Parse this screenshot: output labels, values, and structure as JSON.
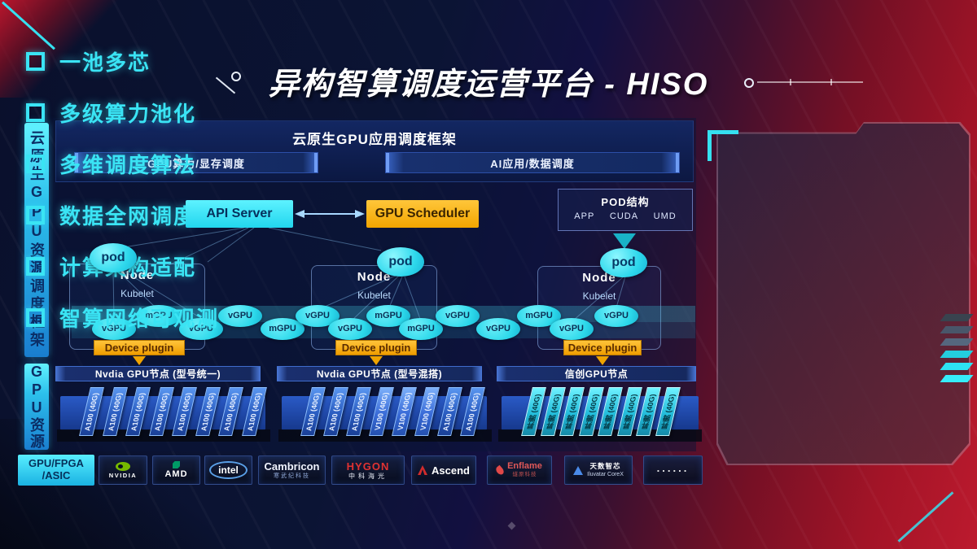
{
  "title": "异构智算调度运营平台 - HISO",
  "sidebar": {
    "frame_label": "云原生GPU资源调度框架",
    "resource_label": "GPU资源"
  },
  "app_framework": {
    "title": "云原生GPU应用调度框架",
    "left_bar": "GPU算力/显存调度",
    "right_bar": "AI应用/数据调度"
  },
  "control": {
    "api_server": "API Server",
    "gpu_scheduler": "GPU Scheduler"
  },
  "pod_struct": {
    "title": "POD结构",
    "items": [
      "APP",
      "CUDA",
      "UMD"
    ]
  },
  "nodes": [
    {
      "pod": "pod",
      "label": "Node",
      "kubelet": "Kubelet",
      "device_plugin": "Device plugin"
    },
    {
      "pod": "pod",
      "label": "Node",
      "kubelet": "Kubelet",
      "device_plugin": "Device plugin"
    },
    {
      "pod": "pod",
      "label": "Node",
      "kubelet": "Kubelet",
      "device_plugin": "Device plugin"
    }
  ],
  "gpu_units": [
    {
      "label": "vGPU",
      "row": "low"
    },
    {
      "label": "mGPU",
      "row": "high"
    },
    {
      "label": "vGPU",
      "row": "low"
    },
    {
      "label": "vGPU",
      "row": "high"
    },
    {
      "label": "mGPU",
      "row": "low"
    },
    {
      "label": "vGPU",
      "row": "high"
    },
    {
      "label": "vGPU",
      "row": "low"
    },
    {
      "label": "mGPU",
      "row": "high"
    },
    {
      "label": "mGPU",
      "row": "low"
    },
    {
      "label": "vGPU",
      "row": "high"
    },
    {
      "label": "vGPU",
      "row": "low"
    },
    {
      "label": "mGPU",
      "row": "high"
    },
    {
      "label": "vGPU",
      "row": "low"
    },
    {
      "label": "vGPU",
      "row": "high"
    }
  ],
  "gpu_groups": [
    {
      "header": "Nvdia GPU节点 (型号统一)",
      "style": "blue",
      "cards": [
        "A100 (40G)",
        "A100 (40G)",
        "A100 (40G)",
        "A100 (40G)",
        "A100 (40G)",
        "A100 (40G)",
        "A100 (40G)",
        "A100 (40G)"
      ]
    },
    {
      "header": "Nvdia GPU节点 (型号混搭)",
      "style": "blue",
      "cards": [
        "A100 (40G)",
        "A100 (40G)",
        "A100 (40G)",
        "V100 (40G)",
        "V100 (40G)",
        "V100 (40G)",
        "A100 (40G)",
        "A100 (40G)"
      ]
    },
    {
      "header": "信创GPU节点",
      "style": "cyan",
      "cards": [
        "昇腾 (40G)",
        "昇腾 (40G)",
        "昇腾 (40G)",
        "昇腾 (40G)",
        "昇腾 (40G)",
        "昇腾 (40G)",
        "昇腾 (40G)",
        "昇腾 (40G)"
      ]
    }
  ],
  "vendor_bar": {
    "label_line1": "GPU/FPGA",
    "label_line2": "/ASIC",
    "vendors": [
      {
        "type": "nvidia",
        "name": "NVIDIA"
      },
      {
        "type": "amd",
        "name": "AMD"
      },
      {
        "type": "intel",
        "name": "intel"
      },
      {
        "type": "cambricon",
        "name": "Cambricon",
        "sub": "寒武纪科技"
      },
      {
        "type": "hygon",
        "name": "HYGON",
        "sub": "中科海光"
      },
      {
        "type": "ascend",
        "name": "Ascend"
      },
      {
        "type": "enflame",
        "name": "Enflame",
        "sub": "燧原科技"
      },
      {
        "type": "iluvatar",
        "name": "天数智芯",
        "sub": "Iluvatar CoreX"
      },
      {
        "type": "dots",
        "name": "......"
      }
    ]
  },
  "features": [
    "一池多芯",
    "多级算力池化",
    "多维调度算法",
    "数据全网调度",
    "计算架构适配",
    "智算网络可观测"
  ],
  "colors": {
    "cyan_accent": "#35e0f0",
    "orange_accent": "#f2a500",
    "navy_bg": "#0b1434",
    "red_bg": "#bc1a2e",
    "nvidia_green": "#76b900"
  }
}
